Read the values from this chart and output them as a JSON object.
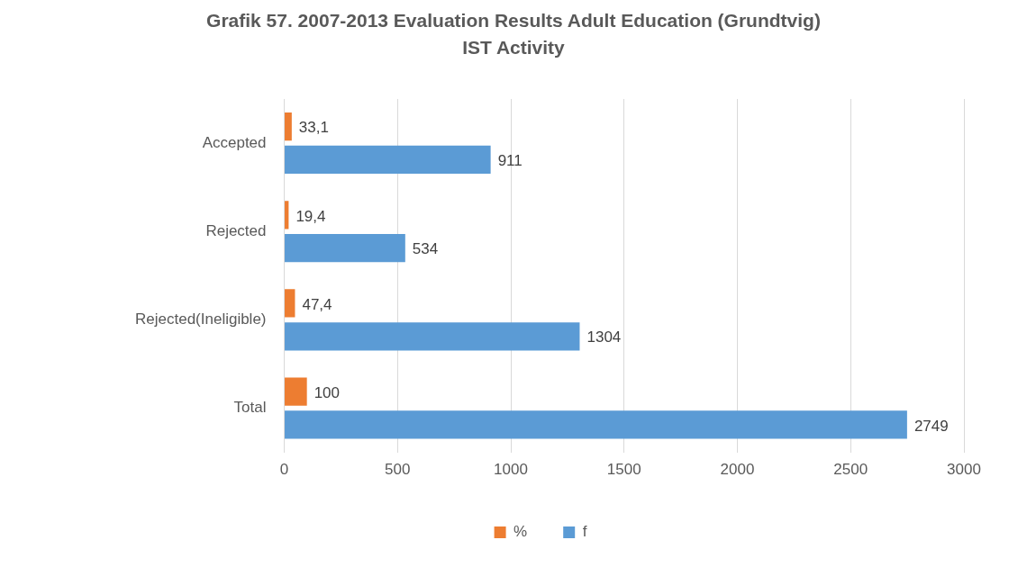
{
  "chart_data": {
    "type": "bar",
    "orientation": "horizontal",
    "title": "Grafik 57. 2007-2013 Evaluation Results Adult Education (Grundtvig) IST Activity",
    "categories": [
      "Accepted",
      "Rejected",
      "Rejected(Ineligible)",
      "Total"
    ],
    "series": [
      {
        "name": "%",
        "color": "#ed7d31",
        "values": [
          33.1,
          19.4,
          47.4,
          100
        ],
        "value_labels": [
          "33,1",
          "19,4",
          "47,4",
          "100"
        ]
      },
      {
        "name": "f",
        "color": "#5b9bd5",
        "values": [
          911,
          534,
          1304,
          2749
        ],
        "value_labels": [
          "911",
          "534",
          "1304",
          "2749"
        ]
      }
    ],
    "xlim": [
      0,
      3000
    ],
    "xticks": [
      0,
      500,
      1000,
      1500,
      2000,
      2500,
      3000
    ],
    "grid": "x",
    "legend": "bottom"
  }
}
